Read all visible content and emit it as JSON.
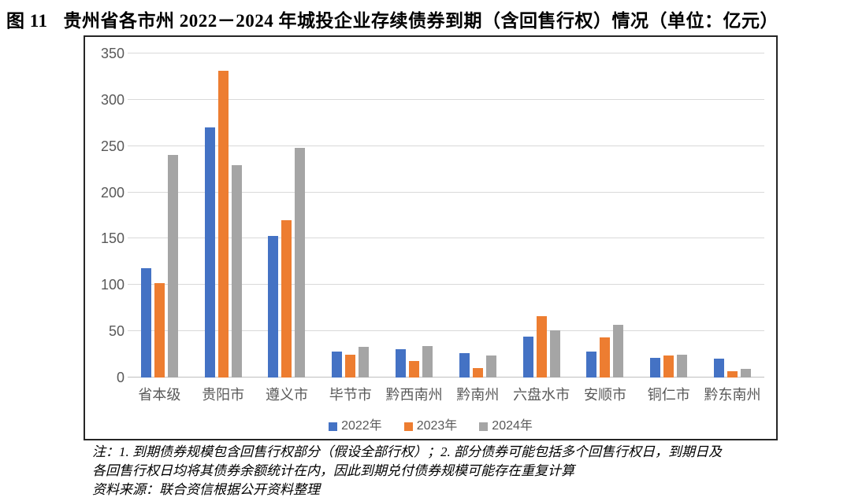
{
  "figure": {
    "title_prefix": "图 11",
    "title_text": "贵州省各市州 2022－2024 年城投企业存续债券到期（含回售行权）情况（单位：亿元）"
  },
  "chart_data": {
    "type": "bar",
    "title": "贵州省各市州2022-2024年城投企业存续债券到期（含回售行权）情况",
    "unit_label": "亿元",
    "categories": [
      "省本级",
      "贵阳市",
      "遵义市",
      "毕节市",
      "黔西南州",
      "黔南州",
      "六盘水市",
      "安顺市",
      "铜仁市",
      "黔东南州"
    ],
    "series": [
      {
        "name": "2022年",
        "color": "#4472C4",
        "values": [
          118,
          270,
          153,
          28,
          31,
          26,
          44,
          28,
          21,
          20
        ]
      },
      {
        "name": "2023年",
        "color": "#ED7D31",
        "values": [
          102,
          331,
          170,
          25,
          18,
          10,
          66,
          43,
          24,
          7
        ]
      },
      {
        "name": "2024年",
        "color": "#A5A5A5",
        "values": [
          240,
          229,
          248,
          33,
          34,
          24,
          51,
          57,
          25,
          9
        ]
      }
    ],
    "xlabel": "",
    "ylabel": "",
    "ylim": [
      0,
      350
    ],
    "yticks": [
      0,
      50,
      100,
      150,
      200,
      250,
      300,
      350
    ],
    "grid": true,
    "legend_position": "bottom"
  },
  "notes": {
    "line1": "注：1. 到期债券规模包含回售行权部分（假设全部行权）；2. 部分债券可能包括多个回售行权日，到期日及",
    "line2": "各回售行权日均将其债券余额统计在内，因此到期兑付债券规模可能存在重复计算",
    "source": "资料来源：联合资信根据公开资料整理"
  },
  "colors": {
    "gridline": "#D9D9D9",
    "baseline": "#BFBFBF",
    "tick_label": "#595959",
    "frame_border": "#262626"
  }
}
